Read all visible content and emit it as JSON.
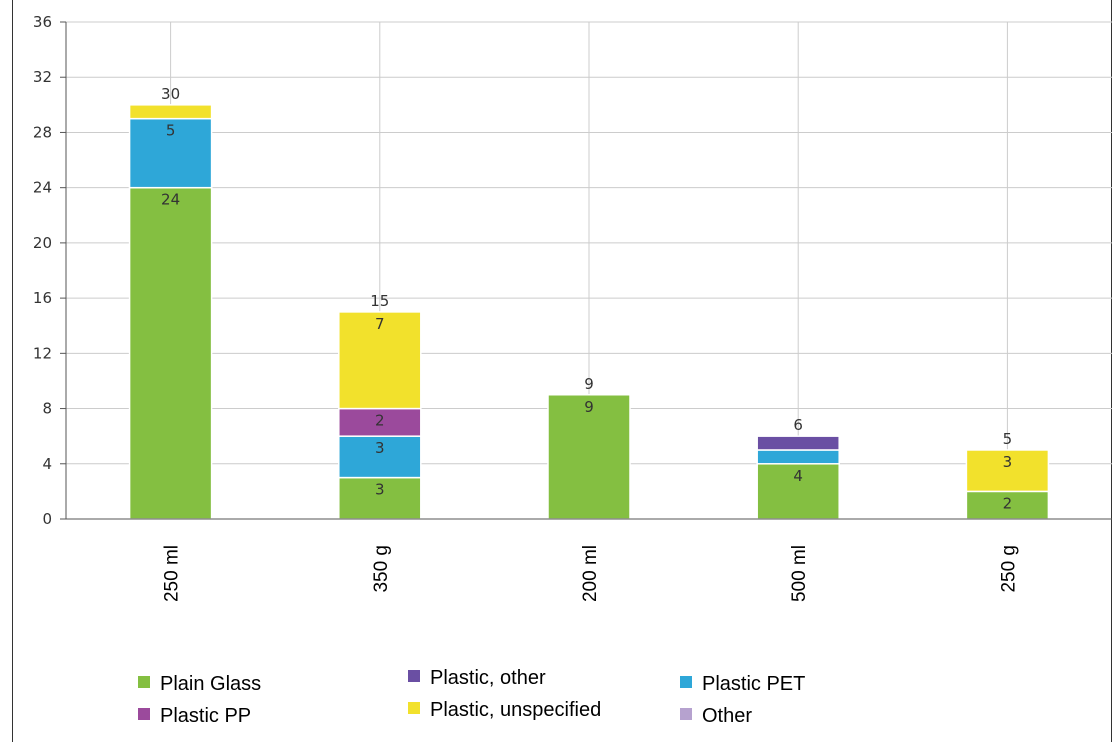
{
  "chart_data": {
    "type": "bar",
    "stacked": true,
    "categories": [
      "250 ml",
      "350 g",
      "200 ml",
      "500 ml",
      "250 g"
    ],
    "ylim": [
      0,
      36
    ],
    "yticks": [
      0,
      4,
      8,
      12,
      16,
      20,
      24,
      28,
      32,
      36
    ],
    "grid": true,
    "legend_position": "bottom",
    "totals": [
      30,
      15,
      9,
      6,
      5
    ],
    "series": [
      {
        "name": "Plain Glass",
        "color": "#84bf41",
        "values": [
          24,
          3,
          9,
          4,
          2
        ]
      },
      {
        "name": "Plastic PET",
        "color": "#2ea7d8",
        "values": [
          5,
          3,
          0,
          1,
          0
        ]
      },
      {
        "name": "Plastic PP",
        "color": "#9b4a9c",
        "values": [
          0,
          2,
          0,
          0,
          0
        ]
      },
      {
        "name": "Plastic, other",
        "color": "#6a4fa3",
        "values": [
          0,
          0,
          0,
          1,
          0
        ]
      },
      {
        "name": "Plastic, unspecified",
        "color": "#f2e12c",
        "values": [
          1,
          7,
          0,
          0,
          3
        ]
      },
      {
        "name": "Other",
        "color": "#b6a2cf",
        "values": [
          0,
          0,
          0,
          0,
          0
        ]
      }
    ],
    "label_min_value": 2
  },
  "legend": {
    "items": [
      {
        "name": "Plain Glass",
        "color": "#84bf41"
      },
      {
        "name": "Plastic, other",
        "color": "#6a4fa3"
      },
      {
        "name": "Plastic PET",
        "color": "#2ea7d8"
      },
      {
        "name": "Plastic PP",
        "color": "#9b4a9c"
      },
      {
        "name": "Plastic, unspecified",
        "color": "#f2e12c"
      },
      {
        "name": "Other",
        "color": "#b6a2cf"
      }
    ]
  }
}
